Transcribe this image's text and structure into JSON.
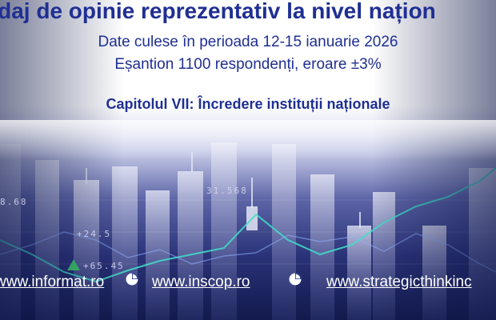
{
  "header": {
    "title": "ndaj de opinie reprezentativ la nivel națion",
    "subtitle_line1": "Date culese în perioada 12-15 ianuarie 2026",
    "subtitle_line2": "Eșantion 1100 respondenți, eroare ±3%",
    "chapter": "Capitolul VII: Încredere instituții naționale"
  },
  "background_tickers": {
    "t1": "31.568",
    "t2": "+24.5",
    "t3": "+65.45",
    "t4": "8.68"
  },
  "links": {
    "informat": "www.informat.ro",
    "inscop": "www.inscop.ro",
    "strategic": "www.strategicthinkinc"
  },
  "icons": {
    "logo_left": "pie-chart-logo-icon",
    "logo_right": "pie-chart-logo-icon"
  },
  "colors": {
    "title_blue": "#1f2f93",
    "link_white": "#ffffff",
    "bg_dark_navy": "#111a52",
    "bars_light": "#c9cdea",
    "trend_line": "#3fe0c8"
  }
}
